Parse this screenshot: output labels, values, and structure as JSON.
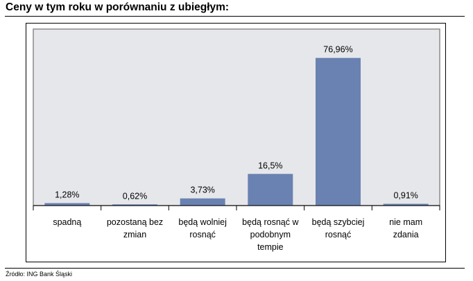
{
  "chart_data": {
    "type": "bar",
    "title": "Ceny w tym roku w porównaniu z ubiegłym:",
    "categories": [
      [
        "spadną"
      ],
      [
        "pozostaną bez",
        "zmian"
      ],
      [
        "będą wolniej",
        "rosnąć"
      ],
      [
        "będą rosnąć w",
        "podobnym",
        "tempie"
      ],
      [
        "będą szybciej",
        "rosnąć"
      ],
      [
        "nie mam",
        "zdania"
      ]
    ],
    "values": [
      1.28,
      0.62,
      3.73,
      16.5,
      76.96,
      0.91
    ],
    "data_labels": [
      "1,28%",
      "0,62%",
      "3,73%",
      "16,5%",
      "76,96%",
      "0,91%"
    ],
    "ylim": [
      0,
      92
    ],
    "xlabel": "",
    "ylabel": "",
    "grid": false,
    "colors": {
      "bar": "#6a82b1",
      "plot_bg": "#e6e7eb"
    }
  },
  "source": "Źródło: ING Bank Śląski"
}
